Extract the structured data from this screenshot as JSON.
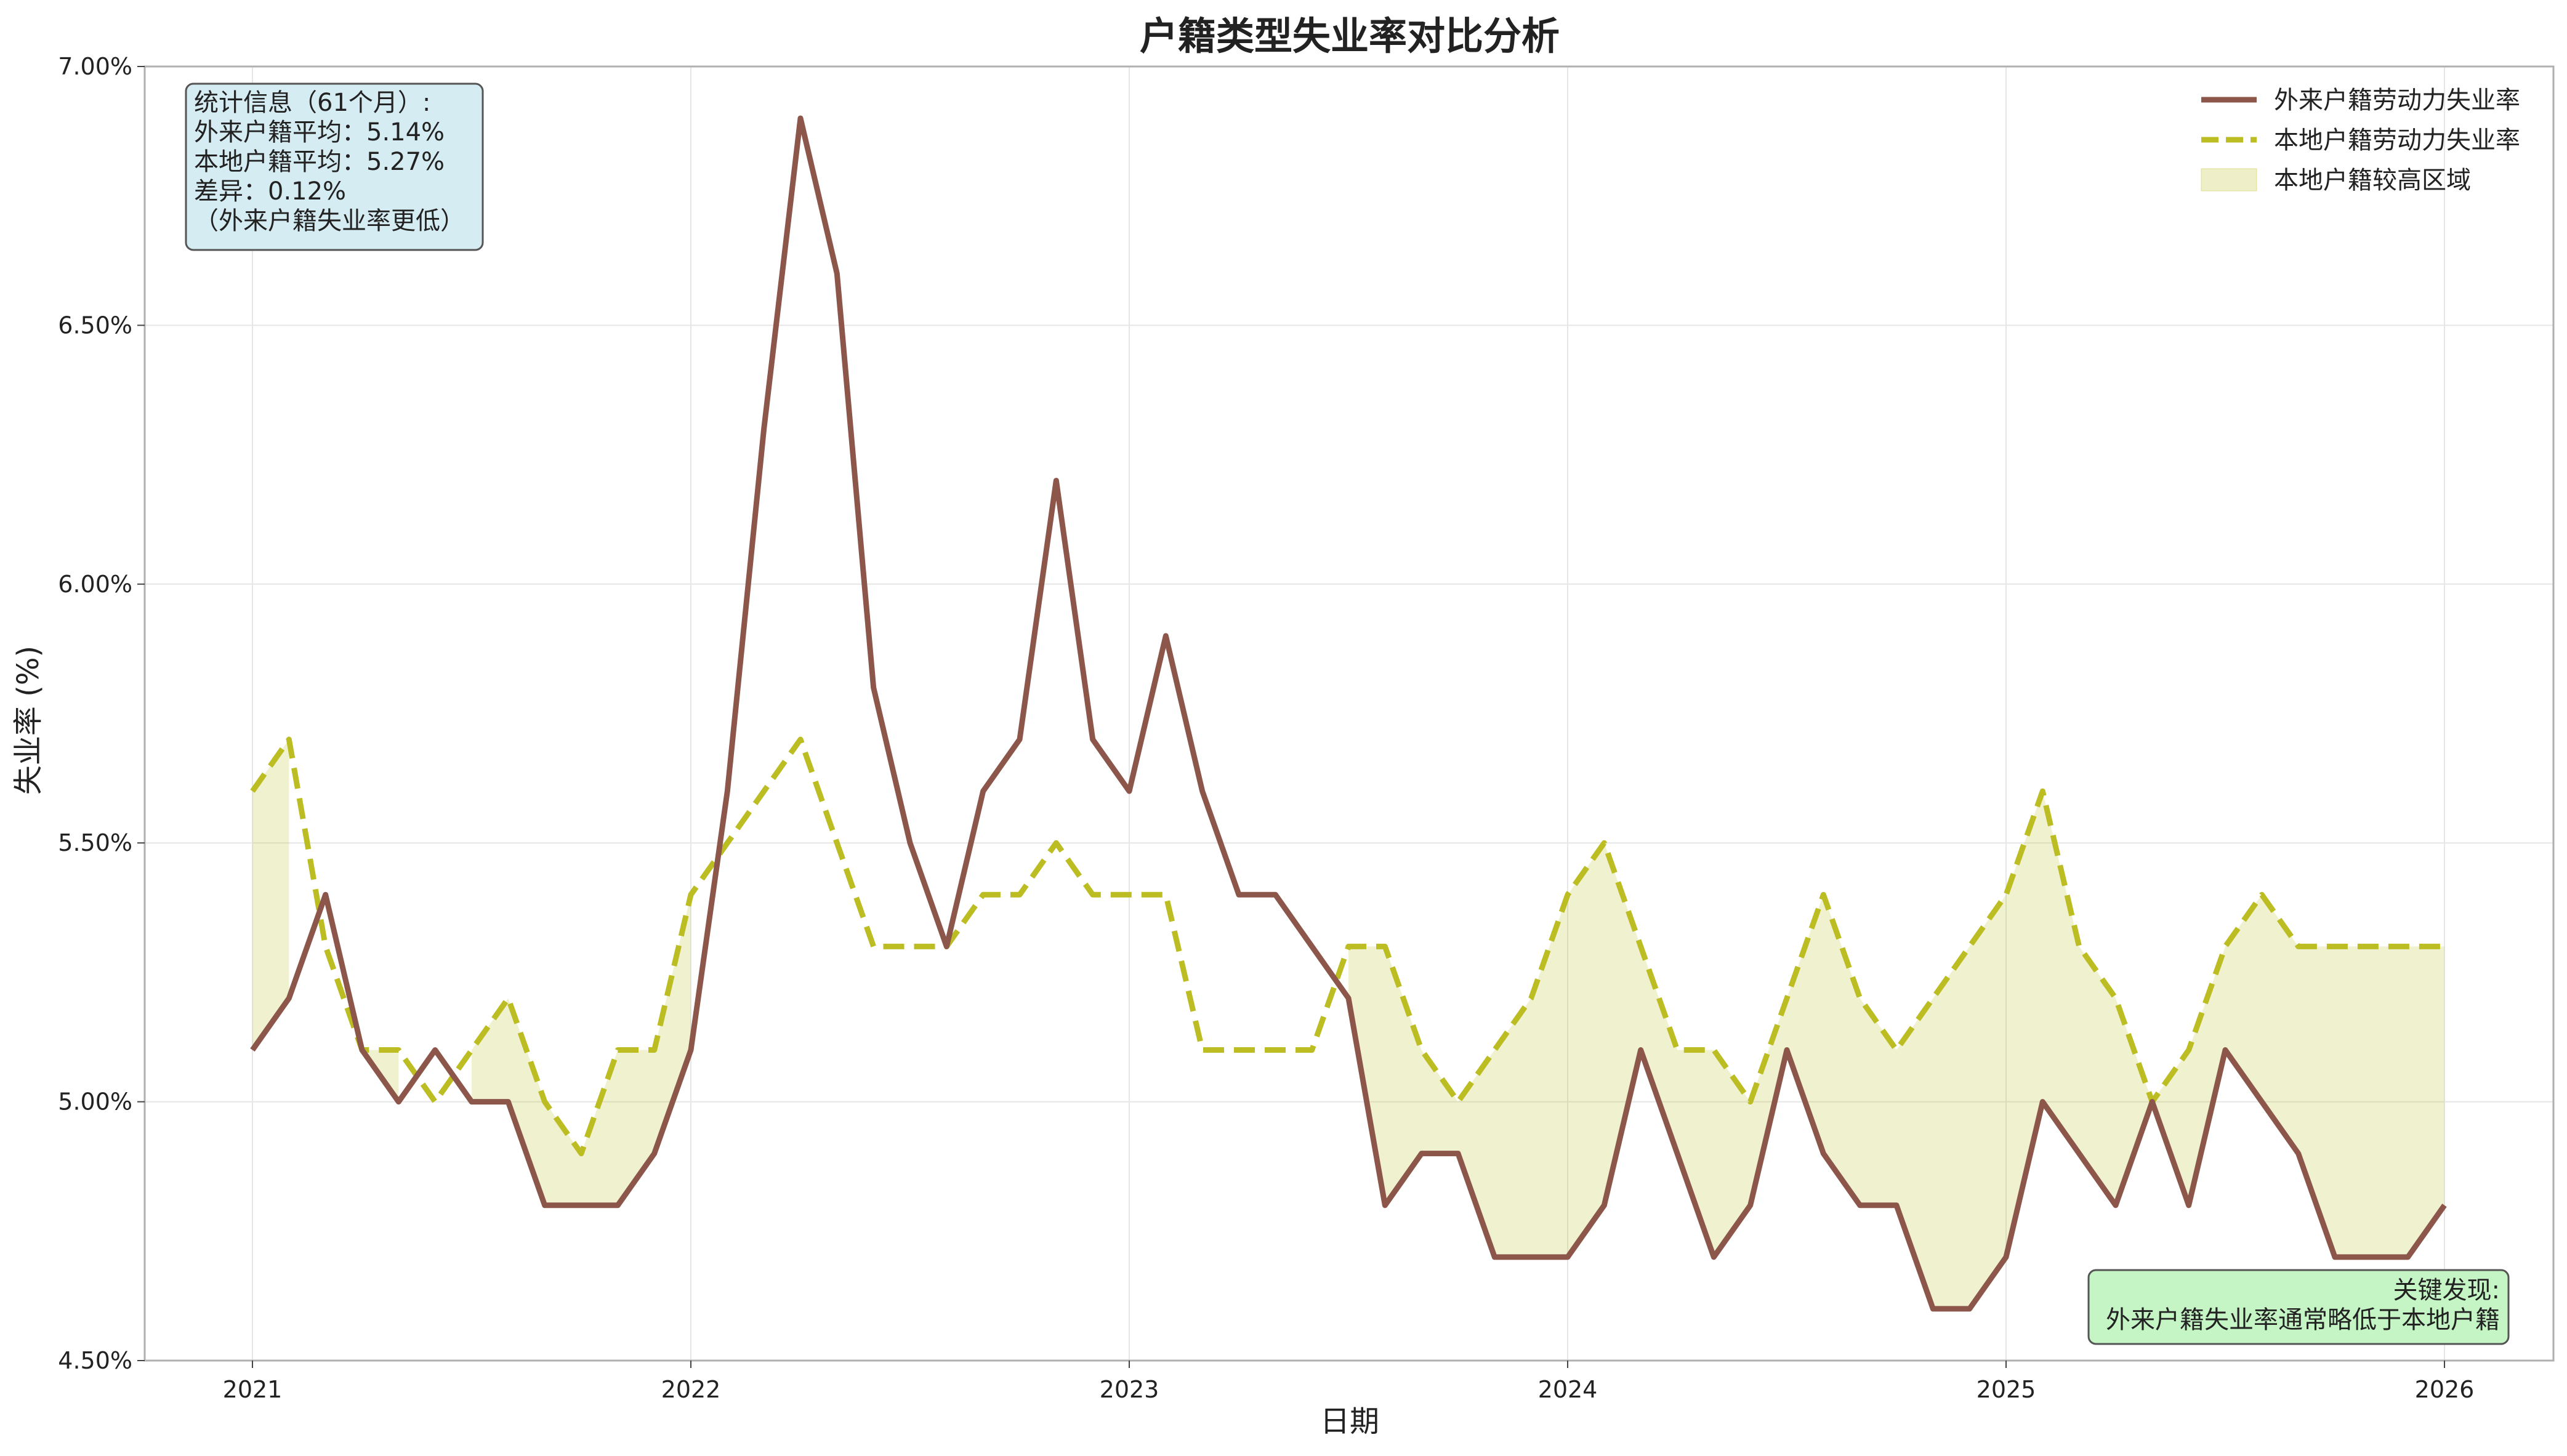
{
  "chart_data": {
    "type": "line",
    "title": "户籍类型失业率对比分析",
    "xlabel": "日期",
    "ylabel": "失业率 (%)",
    "x_start": "2021-01",
    "x_frequency": "monthly",
    "x_ticks": [
      "2021",
      "2022",
      "2023",
      "2024",
      "2025",
      "2026"
    ],
    "ylim": [
      4.5,
      7.0
    ],
    "y_ticks": [
      "4.50%",
      "5.00%",
      "5.50%",
      "6.00%",
      "6.50%",
      "7.00%"
    ],
    "grid": true,
    "legend_position": "top-right",
    "series": [
      {
        "name": "外来户籍劳动力失业率",
        "color": "#8c564b",
        "style": "solid",
        "values": [
          5.1,
          5.2,
          5.4,
          5.1,
          5.0,
          5.1,
          5.0,
          5.0,
          4.8,
          4.8,
          4.8,
          4.9,
          5.1,
          5.6,
          6.3,
          6.9,
          6.6,
          5.8,
          5.5,
          5.3,
          5.6,
          5.7,
          6.2,
          5.7,
          5.6,
          5.9,
          5.6,
          5.4,
          5.4,
          5.3,
          5.2,
          4.8,
          4.9,
          4.9,
          4.7,
          4.7,
          4.7,
          4.8,
          5.1,
          4.9,
          4.7,
          4.8,
          5.1,
          4.9,
          4.8,
          4.8,
          4.6,
          4.6,
          4.7,
          5.0,
          4.9,
          4.8,
          5.0,
          4.8,
          5.1,
          5.0,
          4.9,
          4.7,
          4.7,
          4.7,
          4.8
        ]
      },
      {
        "name": "本地户籍劳动力失业率",
        "color": "#bcbd22",
        "style": "dashed",
        "values": [
          5.6,
          5.7,
          5.3,
          5.1,
          5.1,
          5.0,
          5.1,
          5.2,
          5.0,
          4.9,
          5.1,
          5.1,
          5.4,
          5.5,
          5.6,
          5.7,
          5.5,
          5.3,
          5.3,
          5.3,
          5.4,
          5.4,
          5.5,
          5.4,
          5.4,
          5.4,
          5.1,
          5.1,
          5.1,
          5.1,
          5.3,
          5.3,
          5.1,
          5.0,
          5.1,
          5.2,
          5.4,
          5.5,
          5.3,
          5.1,
          5.1,
          5.0,
          5.2,
          5.4,
          5.2,
          5.1,
          5.2,
          5.3,
          5.4,
          5.6,
          5.3,
          5.2,
          5.0,
          5.1,
          5.3,
          5.4,
          5.3,
          5.3,
          5.3,
          5.3,
          5.3
        ]
      }
    ],
    "fill": {
      "label": "本地户籍较高区域",
      "color": "#bcbd22",
      "where": "本地户籍劳动力失业率 > 外来户籍劳动力失业率"
    },
    "annotations": {
      "stats_box": {
        "lines": [
          "统计信息（61个月）:",
          "外来户籍平均：5.14%",
          "本地户籍平均：5.27%",
          "差异：0.12%",
          "（外来户籍失业率更低）"
        ],
        "bg": "#d6ecf3"
      },
      "finding_box": {
        "lines": [
          "关键发现:",
          "外来户籍失业率通常略低于本地户籍"
        ],
        "bg": "#c5f5c5"
      }
    }
  }
}
